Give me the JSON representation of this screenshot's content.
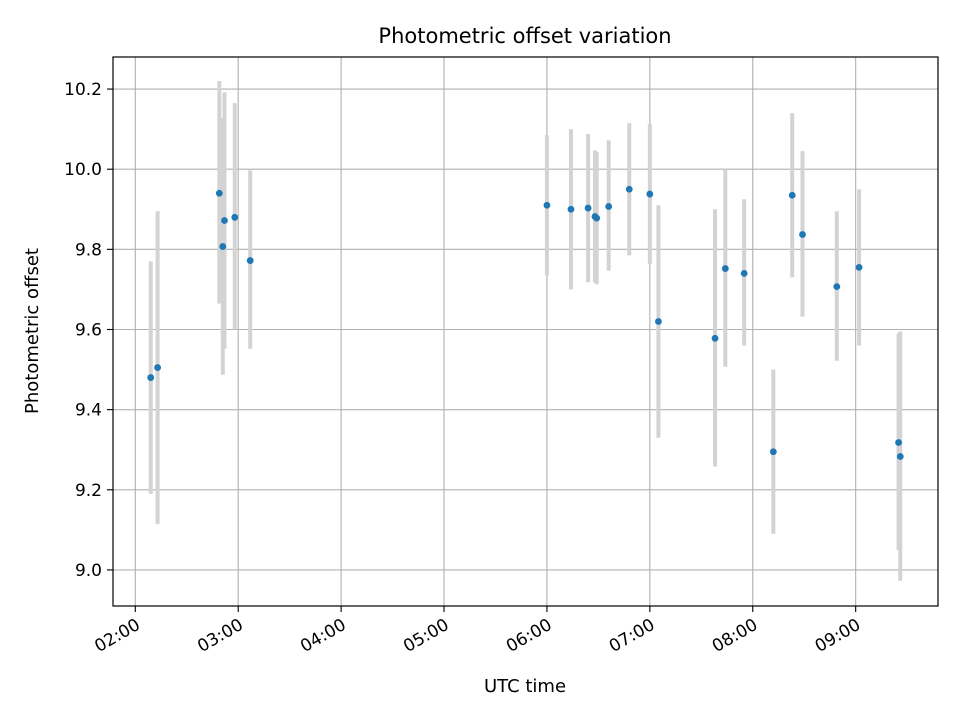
{
  "chart_data": {
    "type": "scatter",
    "title": "Photometric offset variation",
    "xlabel": "UTC time",
    "ylabel": "Photometric offset",
    "x_ticks": [
      "02:00",
      "03:00",
      "04:00",
      "05:00",
      "06:00",
      "07:00",
      "08:00",
      "09:00"
    ],
    "y_ticks": [
      "9.0",
      "9.2",
      "9.4",
      "9.6",
      "9.8",
      "10.0",
      "10.2"
    ],
    "xlim": [
      "01:47",
      "09:48"
    ],
    "ylim": [
      8.91,
      10.28
    ],
    "grid": true,
    "colors": {
      "point": "#1f77b4",
      "errorbar": "#d3d3d3",
      "grid": "#b0b0b0"
    },
    "points": [
      {
        "time": "02:09",
        "y": 9.48,
        "yerr_low": 9.19,
        "yerr_high": 9.77
      },
      {
        "time": "02:13",
        "y": 9.505,
        "yerr_low": 9.115,
        "yerr_high": 9.895
      },
      {
        "time": "02:49",
        "y": 9.94,
        "yerr_low": 9.665,
        "yerr_high": 10.22
      },
      {
        "time": "02:51",
        "y": 9.807,
        "yerr_low": 9.487,
        "yerr_high": 10.127
      },
      {
        "time": "02:52",
        "y": 9.872,
        "yerr_low": 9.552,
        "yerr_high": 10.192
      },
      {
        "time": "02:58",
        "y": 9.88,
        "yerr_low": 9.6,
        "yerr_high": 10.165
      },
      {
        "time": "03:07",
        "y": 9.772,
        "yerr_low": 9.552,
        "yerr_high": 9.997
      },
      {
        "time": "06:00",
        "y": 9.91,
        "yerr_low": 9.735,
        "yerr_high": 10.085
      },
      {
        "time": "06:14",
        "y": 9.9,
        "yerr_low": 9.7,
        "yerr_high": 10.1
      },
      {
        "time": "06:24",
        "y": 9.903,
        "yerr_low": 9.718,
        "yerr_high": 10.088
      },
      {
        "time": "06:28",
        "y": 9.882,
        "yerr_low": 9.717,
        "yerr_high": 10.047
      },
      {
        "time": "06:29",
        "y": 9.878,
        "yerr_low": 9.713,
        "yerr_high": 10.043
      },
      {
        "time": "06:36",
        "y": 9.907,
        "yerr_low": 9.747,
        "yerr_high": 10.072
      },
      {
        "time": "06:48",
        "y": 9.95,
        "yerr_low": 9.785,
        "yerr_high": 10.115
      },
      {
        "time": "07:00",
        "y": 9.938,
        "yerr_low": 9.763,
        "yerr_high": 10.113
      },
      {
        "time": "07:05",
        "y": 9.62,
        "yerr_low": 9.33,
        "yerr_high": 9.91
      },
      {
        "time": "07:38",
        "y": 9.578,
        "yerr_low": 9.258,
        "yerr_high": 9.9
      },
      {
        "time": "07:44",
        "y": 9.752,
        "yerr_low": 9.507,
        "yerr_high": 10.0
      },
      {
        "time": "07:55",
        "y": 9.74,
        "yerr_low": 9.56,
        "yerr_high": 9.925
      },
      {
        "time": "08:12",
        "y": 9.295,
        "yerr_low": 9.09,
        "yerr_high": 9.5
      },
      {
        "time": "08:23",
        "y": 9.935,
        "yerr_low": 9.73,
        "yerr_high": 10.14
      },
      {
        "time": "08:29",
        "y": 9.837,
        "yerr_low": 9.632,
        "yerr_high": 10.045
      },
      {
        "time": "08:49",
        "y": 9.707,
        "yerr_low": 9.522,
        "yerr_high": 9.895
      },
      {
        "time": "09:02",
        "y": 9.755,
        "yerr_low": 9.56,
        "yerr_high": 9.95
      },
      {
        "time": "09:25",
        "y": 9.318,
        "yerr_low": 9.05,
        "yerr_high": 9.59
      },
      {
        "time": "09:26",
        "y": 9.283,
        "yerr_low": 8.973,
        "yerr_high": 9.595
      }
    ]
  }
}
